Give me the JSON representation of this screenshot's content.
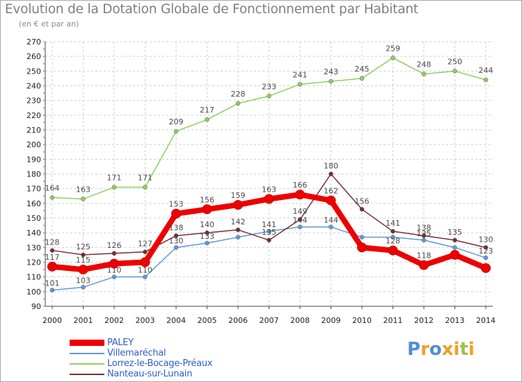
{
  "title": "Evolution de la Dotation Globale de Fonctionnement par Habitant",
  "subtitle": "(en € et par an)",
  "logo": {
    "text": "Proxiti",
    "colors": [
      "#4f8fd0",
      "#f0a020",
      "#4f8fd0",
      "#f0a020",
      "#f0a020",
      "#a0c050",
      "#f0a020"
    ]
  },
  "chart_data": {
    "type": "line",
    "title": "Evolution de la Dotation Globale de Fonctionnement par Habitant",
    "subtitle": "(en € et par an)",
    "xlabel": "",
    "ylabel": "",
    "ylim": [
      90,
      270
    ],
    "ytick_step": 10,
    "grid": true,
    "legend_position": "bottom-left",
    "x": [
      "2000",
      "2001",
      "2002",
      "2003",
      "2004",
      "2005",
      "2006",
      "2007",
      "2008",
      "2009",
      "2010",
      "2011",
      "2012",
      "2013",
      "2014"
    ],
    "series": [
      {
        "name": "PALEY",
        "color": "#ee0000",
        "emphasis": true,
        "values": [
          117,
          115,
          119,
          120,
          153,
          156,
          159,
          163,
          166,
          162,
          130,
          128,
          118,
          125,
          116
        ],
        "labels": [
          "117",
          "115",
          "",
          "",
          "153",
          "156",
          "159",
          "163",
          "166",
          "162",
          "",
          "128",
          "118",
          "",
          ""
        ]
      },
      {
        "name": "Villemaréchal",
        "color": "#5e9ad6",
        "values": [
          101,
          103,
          110,
          110,
          130,
          133,
          137,
          141,
          144,
          144,
          137,
          137,
          135,
          130,
          123
        ],
        "labels": [
          "101",
          "103",
          "110",
          "110",
          "130",
          "133",
          "",
          "141",
          "144",
          "144",
          "",
          "",
          "135",
          "",
          "123"
        ]
      },
      {
        "name": "Lorrez-le-Bocage-Préaux",
        "color": "#8fcf5f",
        "values": [
          164,
          163,
          171,
          171,
          209,
          217,
          228,
          233,
          241,
          243,
          245,
          259,
          248,
          250,
          244
        ],
        "labels": [
          "164",
          "163",
          "171",
          "171",
          "209",
          "217",
          "228",
          "233",
          "241",
          "243",
          "245",
          "259",
          "248",
          "250",
          "244"
        ]
      },
      {
        "name": "Nanteau-sur-Lunain",
        "color": "#7a2e2e",
        "values": [
          128,
          125,
          126,
          127,
          138,
          140,
          142,
          135,
          149,
          180,
          156,
          141,
          138,
          135,
          130
        ],
        "labels": [
          "128",
          "125",
          "126",
          "127",
          "138",
          "140",
          "142",
          "135",
          "149",
          "180",
          "156",
          "141",
          "138",
          "135",
          "130"
        ]
      }
    ]
  }
}
